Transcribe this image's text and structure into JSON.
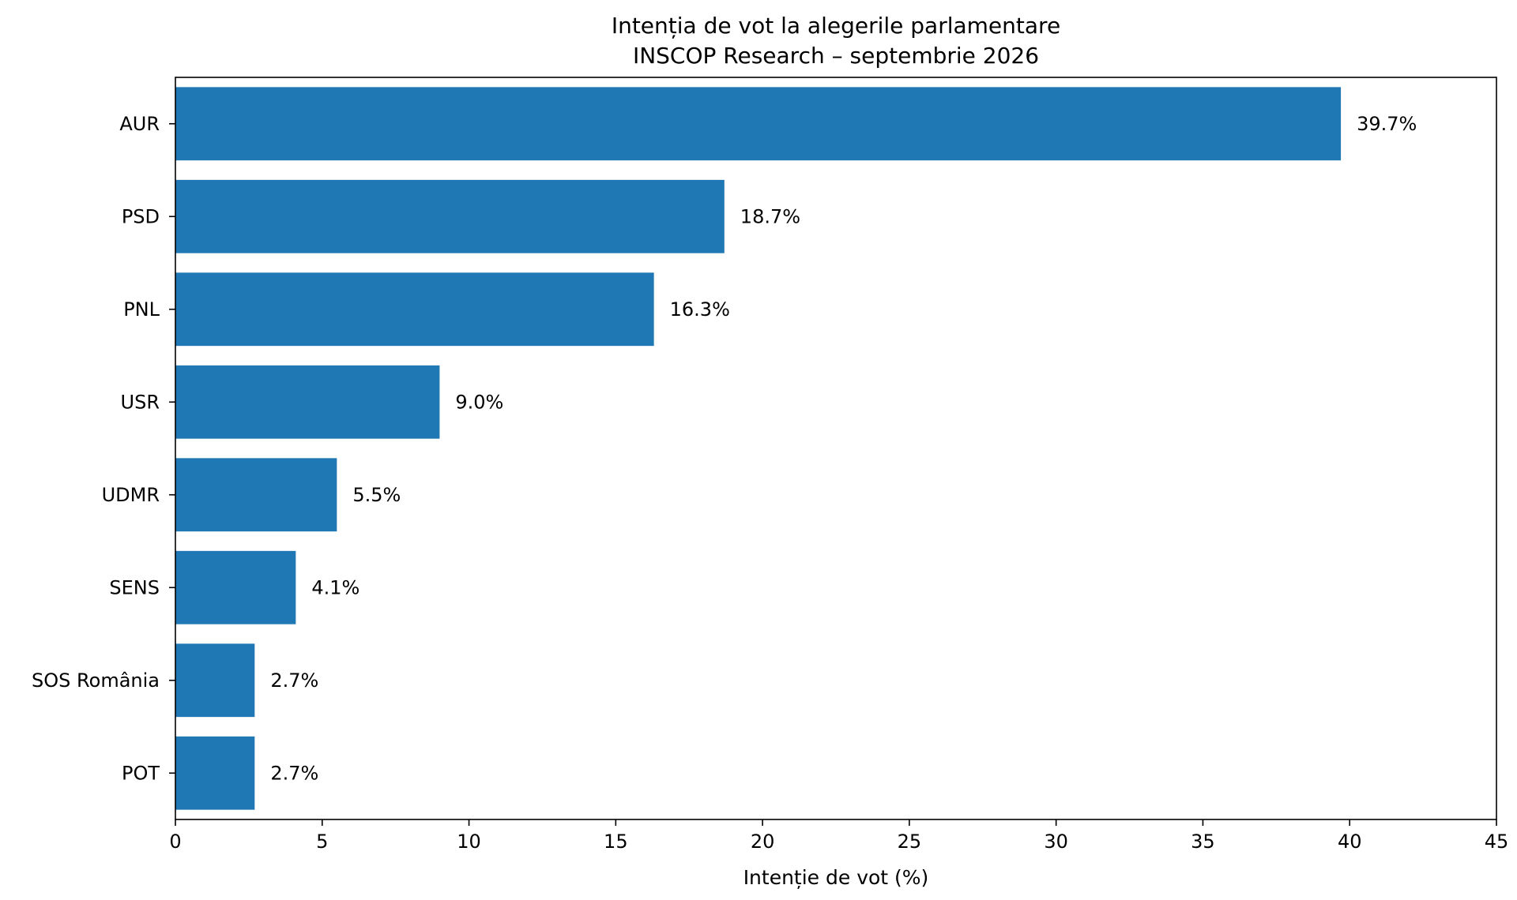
{
  "chart_data": {
    "type": "bar",
    "orientation": "horizontal",
    "title": "Intenția de vot la alegerile parlamentare",
    "subtitle": "INSCOP Research – septembrie 2026",
    "xlabel": "Intenție de vot (%)",
    "ylabel": "",
    "xlim": [
      0,
      45
    ],
    "xticks": [
      0,
      5,
      10,
      15,
      20,
      25,
      30,
      35,
      40,
      45
    ],
    "grid": false,
    "bar_color": "#1f77b4",
    "categories": [
      "AUR",
      "PSD",
      "PNL",
      "USR",
      "UDMR",
      "SENS",
      "SOS România",
      "POT"
    ],
    "values": [
      39.7,
      18.7,
      16.3,
      9.0,
      5.5,
      4.1,
      2.7,
      2.7
    ],
    "value_labels": [
      "39.7%",
      "18.7%",
      "16.3%",
      "9.0%",
      "5.5%",
      "4.1%",
      "2.7%",
      "2.7%"
    ]
  }
}
